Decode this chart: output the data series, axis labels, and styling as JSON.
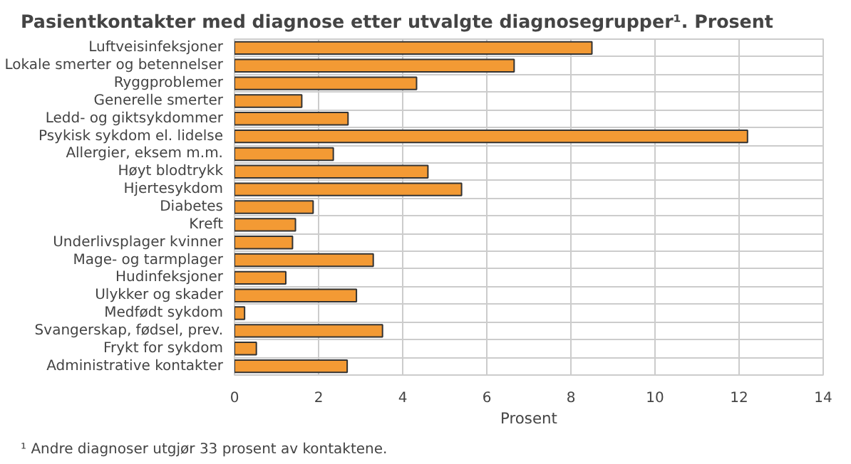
{
  "chart_data": {
    "type": "bar",
    "orientation": "horizontal",
    "title": "Pasientkontakter med diagnose etter utvalgte diagnosegrupper¹. Prosent",
    "xlabel": "Prosent",
    "categories": [
      "Luftveisinfeksjoner",
      "Lokale smerter og betennelser",
      "Ryggproblemer",
      "Generelle smerter",
      "Ledd- og giktsykdommer",
      "Psykisk sykdom el. lidelse",
      "Allergier, eksem m.m.",
      "Høyt blodtrykk",
      "Hjertesykdom",
      "Diabetes",
      "Kreft",
      "Underlivsplager kvinner",
      "Mage- og tarmplager",
      "Hudinfeksjoner",
      "Ulykker og skader",
      "Medfødt sykdom",
      "Svangerskap, fødsel, prev.",
      "Frykt for sykdom",
      "Administrative kontakter"
    ],
    "values": [
      8.5,
      6.65,
      4.33,
      1.6,
      2.7,
      12.2,
      2.35,
      4.6,
      5.4,
      1.87,
      1.45,
      1.38,
      3.3,
      1.22,
      2.9,
      0.24,
      3.52,
      0.52,
      2.68
    ],
    "color": "#f39a34",
    "xlim": [
      0,
      14
    ],
    "xticks": [
      0,
      2,
      4,
      6,
      8,
      10,
      12,
      14
    ],
    "grid": true,
    "annotations": [
      "¹ Andre diagnoser utgjør 33 prosent av kontaktene."
    ]
  }
}
